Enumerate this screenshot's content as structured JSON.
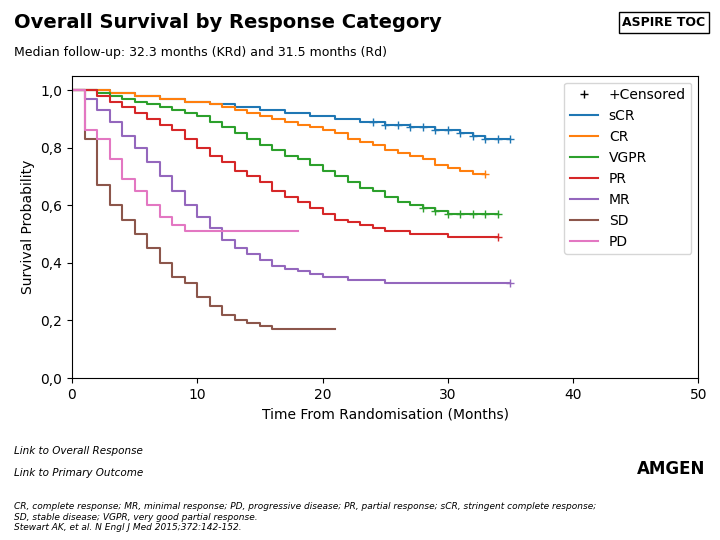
{
  "chart_data": {
    "type": "step",
    "title": "Overall Survival by Response Category",
    "subtitle": "Median follow-up: 32.3 months (KRd) and 31.5 months (Rd)",
    "xlabel": "Time From Randomisation (Months)",
    "ylabel": "Survival Probability",
    "annotations": [
      "ASPIRE TOC",
      "CR, complete response; MR, minimal response; PD, progressive disease; PR, partial response; sCR, stringent complete response;\nSD, stable disease; VGPR, very good partial response.\nStewart AK, et al. N Engl J Med 2015;372:142-152.",
      "Link to Overall Response",
      "Link to Primary Outcome",
      "AMGEN"
    ],
    "xlim": [
      0,
      50
    ],
    "ylim": [
      0.0,
      1.05
    ],
    "xticks": [
      0,
      10,
      20,
      30,
      40,
      50
    ],
    "yticks": [
      {
        "value": 0.0,
        "label": "0,0"
      },
      {
        "value": 0.2,
        "label": "0,2"
      },
      {
        "value": 0.4,
        "label": "0,4"
      },
      {
        "value": 0.6,
        "label": "0,6"
      },
      {
        "value": 0.8,
        "label": "0,8"
      },
      {
        "value": 1.0,
        "label": "1,0"
      }
    ],
    "legend": "upper right",
    "censored_name": "+Censored",
    "series": [
      {
        "name": "sCR",
        "x": [
          0,
          1,
          2,
          3,
          4,
          5,
          6,
          7,
          8,
          9,
          10,
          11,
          12,
          13,
          14,
          15,
          16,
          17,
          18,
          19,
          20,
          21,
          22,
          23,
          24,
          25,
          26,
          27,
          28,
          29,
          30,
          31,
          32,
          33,
          34,
          35
        ],
        "values": [
          1.0,
          1.0,
          1.0,
          0.99,
          0.99,
          0.98,
          0.98,
          0.97,
          0.97,
          0.96,
          0.96,
          0.95,
          0.95,
          0.94,
          0.94,
          0.93,
          0.93,
          0.92,
          0.92,
          0.91,
          0.91,
          0.9,
          0.9,
          0.89,
          0.89,
          0.88,
          0.88,
          0.87,
          0.87,
          0.86,
          0.86,
          0.85,
          0.84,
          0.83,
          0.83,
          0.83
        ],
        "censored_x": [
          24,
          25,
          26,
          27,
          28,
          29,
          30,
          31,
          32,
          33,
          34,
          35
        ],
        "censored_y": [
          0.89,
          0.88,
          0.88,
          0.87,
          0.87,
          0.86,
          0.86,
          0.85,
          0.84,
          0.83,
          0.83,
          0.83
        ]
      },
      {
        "name": "CR",
        "x": [
          0,
          1,
          2,
          3,
          4,
          5,
          6,
          7,
          8,
          9,
          10,
          11,
          12,
          13,
          14,
          15,
          16,
          17,
          18,
          19,
          20,
          21,
          22,
          23,
          24,
          25,
          26,
          27,
          28,
          29,
          30,
          31,
          32,
          33
        ],
        "values": [
          1.0,
          1.0,
          1.0,
          0.99,
          0.99,
          0.98,
          0.98,
          0.97,
          0.97,
          0.96,
          0.96,
          0.95,
          0.94,
          0.93,
          0.92,
          0.91,
          0.9,
          0.89,
          0.88,
          0.87,
          0.86,
          0.85,
          0.83,
          0.82,
          0.81,
          0.79,
          0.78,
          0.77,
          0.76,
          0.74,
          0.73,
          0.72,
          0.71,
          0.71
        ],
        "censored_x": [
          33
        ],
        "censored_y": [
          0.71
        ]
      },
      {
        "name": "VGPR",
        "x": [
          0,
          1,
          2,
          3,
          4,
          5,
          6,
          7,
          8,
          9,
          10,
          11,
          12,
          13,
          14,
          15,
          16,
          17,
          18,
          19,
          20,
          21,
          22,
          23,
          24,
          25,
          26,
          27,
          28,
          29,
          30,
          31,
          32,
          33,
          34
        ],
        "values": [
          1.0,
          1.0,
          0.99,
          0.98,
          0.97,
          0.96,
          0.95,
          0.94,
          0.93,
          0.92,
          0.91,
          0.89,
          0.87,
          0.85,
          0.83,
          0.81,
          0.79,
          0.77,
          0.76,
          0.74,
          0.72,
          0.7,
          0.68,
          0.66,
          0.65,
          0.63,
          0.61,
          0.6,
          0.59,
          0.58,
          0.57,
          0.57,
          0.57,
          0.57,
          0.57
        ],
        "censored_x": [
          28,
          29,
          30,
          31,
          32,
          33,
          34
        ],
        "censored_y": [
          0.59,
          0.58,
          0.57,
          0.57,
          0.57,
          0.57,
          0.57
        ]
      },
      {
        "name": "PR",
        "x": [
          0,
          1,
          2,
          3,
          4,
          5,
          6,
          7,
          8,
          9,
          10,
          11,
          12,
          13,
          14,
          15,
          16,
          17,
          18,
          19,
          20,
          21,
          22,
          23,
          24,
          25,
          26,
          27,
          28,
          29,
          30,
          31,
          32,
          33,
          34
        ],
        "values": [
          1.0,
          1.0,
          0.98,
          0.96,
          0.94,
          0.92,
          0.9,
          0.88,
          0.86,
          0.83,
          0.8,
          0.77,
          0.75,
          0.72,
          0.7,
          0.68,
          0.65,
          0.63,
          0.61,
          0.59,
          0.57,
          0.55,
          0.54,
          0.53,
          0.52,
          0.51,
          0.51,
          0.5,
          0.5,
          0.5,
          0.49,
          0.49,
          0.49,
          0.49,
          0.49
        ],
        "censored_x": [
          34
        ],
        "censored_y": [
          0.49
        ]
      },
      {
        "name": "MR",
        "x": [
          0,
          1,
          2,
          3,
          4,
          5,
          6,
          7,
          8,
          9,
          10,
          11,
          12,
          13,
          14,
          15,
          16,
          17,
          18,
          19,
          20,
          21,
          22,
          23,
          24,
          25,
          26,
          27,
          28,
          29,
          30,
          31,
          32,
          33,
          34,
          35
        ],
        "values": [
          1.0,
          0.97,
          0.93,
          0.89,
          0.84,
          0.8,
          0.75,
          0.7,
          0.65,
          0.6,
          0.56,
          0.52,
          0.48,
          0.45,
          0.43,
          0.41,
          0.39,
          0.38,
          0.37,
          0.36,
          0.35,
          0.35,
          0.34,
          0.34,
          0.34,
          0.33,
          0.33,
          0.33,
          0.33,
          0.33,
          0.33,
          0.33,
          0.33,
          0.33,
          0.33,
          0.33
        ],
        "censored_x": [
          35
        ],
        "censored_y": [
          0.33
        ]
      },
      {
        "name": "SD",
        "x": [
          0,
          1,
          2,
          3,
          4,
          5,
          6,
          7,
          8,
          9,
          10,
          11,
          12,
          13,
          14,
          15,
          16,
          17,
          18,
          19,
          20,
          21
        ],
        "values": [
          1.0,
          0.83,
          0.67,
          0.6,
          0.55,
          0.5,
          0.45,
          0.4,
          0.35,
          0.33,
          0.28,
          0.25,
          0.22,
          0.2,
          0.19,
          0.18,
          0.17,
          0.17,
          0.17,
          0.17,
          0.17,
          0.17
        ],
        "censored_x": [],
        "censored_y": []
      },
      {
        "name": "PD",
        "x": [
          0,
          1,
          2,
          3,
          4,
          5,
          6,
          7,
          8,
          9,
          10,
          11,
          12,
          13,
          14,
          15,
          16,
          17,
          18
        ],
        "values": [
          1.0,
          0.86,
          0.83,
          0.76,
          0.69,
          0.65,
          0.6,
          0.56,
          0.53,
          0.51,
          0.51,
          0.51,
          0.51,
          0.51,
          0.51,
          0.51,
          0.51,
          0.51,
          0.51
        ],
        "censored_x": [],
        "censored_y": []
      }
    ]
  }
}
